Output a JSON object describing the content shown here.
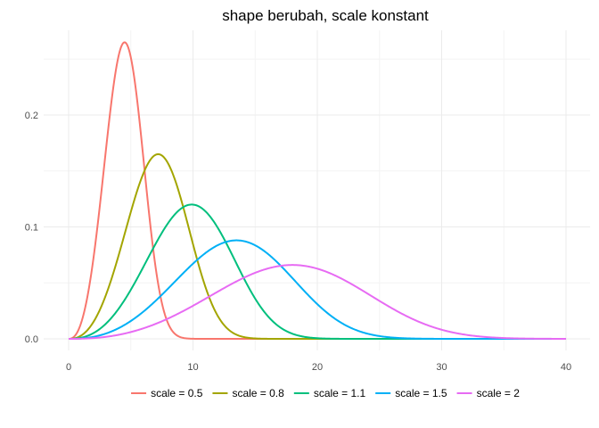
{
  "chart_data": {
    "type": "line",
    "title": "shape berubah, scale konstant",
    "xlabel": "",
    "ylabel": "",
    "xlim": [
      0,
      40
    ],
    "ylim": [
      0,
      0.265
    ],
    "x_ticks": [
      0,
      10,
      20,
      30,
      40
    ],
    "y_ticks": [
      0.0,
      0.1,
      0.2
    ],
    "x_tick_labels": [
      "0",
      "10",
      "20",
      "30",
      "40"
    ],
    "y_tick_labels": [
      "0.0",
      "0.1",
      "0.2"
    ],
    "grid": true,
    "legend_position": "bottom",
    "series": [
      {
        "name": "scale = 0.5",
        "color": "#F8766D",
        "peak_x": 4.5,
        "peak_y": 0.265
      },
      {
        "name": "scale = 0.8",
        "color": "#A3A500",
        "peak_x": 7.2,
        "peak_y": 0.165
      },
      {
        "name": "scale = 1.1",
        "color": "#00BF7D",
        "peak_x": 9.9,
        "peak_y": 0.12
      },
      {
        "name": "scale = 1.5",
        "color": "#00B0F6",
        "peak_x": 13.5,
        "peak_y": 0.088
      },
      {
        "name": "scale = 2",
        "color": "#E76BF3",
        "peak_x": 18.0,
        "peak_y": 0.066
      }
    ]
  }
}
